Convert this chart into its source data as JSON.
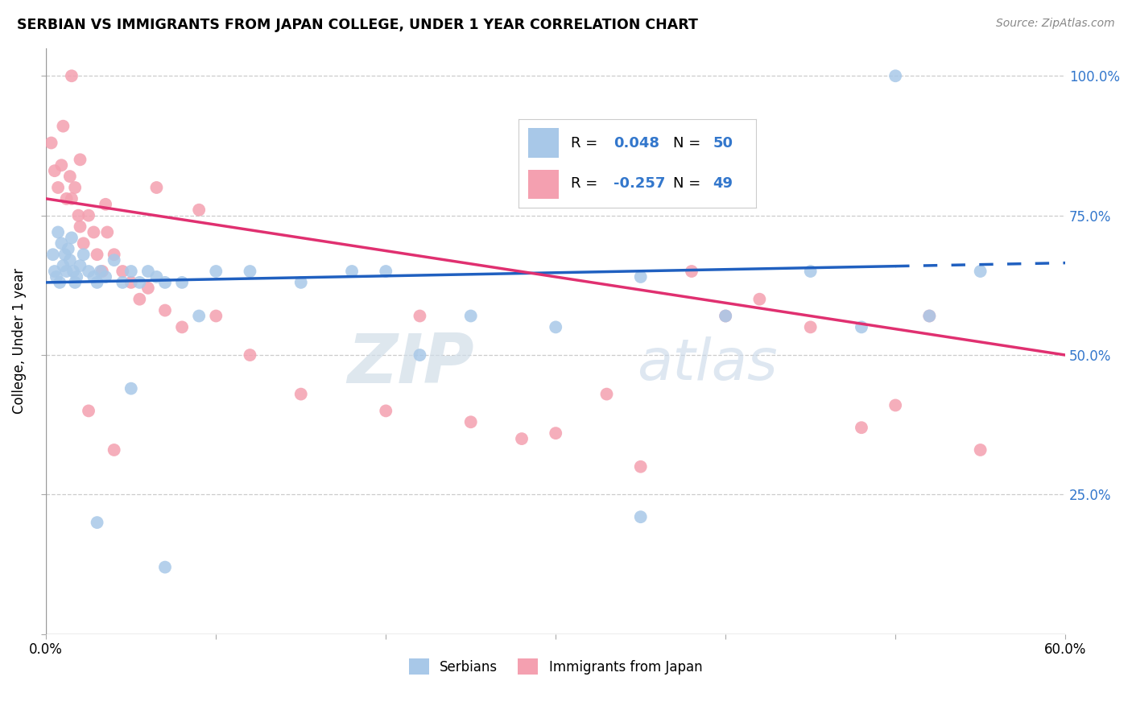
{
  "title": "SERBIAN VS IMMIGRANTS FROM JAPAN COLLEGE, UNDER 1 YEAR CORRELATION CHART",
  "source": "Source: ZipAtlas.com",
  "ylabel": "College, Under 1 year",
  "background_color": "#ffffff",
  "blue_scatter_color": "#a8c8e8",
  "pink_scatter_color": "#f4a0b0",
  "blue_line_color": "#2060c0",
  "pink_line_color": "#e03070",
  "R_blue": 0.048,
  "N_blue": 50,
  "R_pink": -0.257,
  "N_pink": 49,
  "legend_label_blue": "Serbians",
  "legend_label_pink": "Immigrants from Japan",
  "watermark_zip": "ZIP",
  "watermark_atlas": "atlas",
  "blue_line_x0": 0,
  "blue_line_y0": 63.0,
  "blue_line_x1": 60,
  "blue_line_y1": 66.5,
  "blue_solid_end": 50,
  "pink_line_x0": 0,
  "pink_line_y0": 78.0,
  "pink_line_x1": 60,
  "pink_line_y1": 50.0,
  "xlim": [
    0.0,
    60.0
  ],
  "ylim": [
    0.0,
    105.0
  ],
  "blue_x": [
    0.4,
    0.5,
    0.6,
    0.7,
    0.8,
    0.9,
    1.0,
    1.1,
    1.2,
    1.3,
    1.4,
    1.5,
    1.6,
    1.7,
    1.8,
    2.0,
    2.2,
    2.5,
    2.8,
    3.0,
    3.2,
    3.5,
    4.0,
    4.5,
    5.0,
    5.5,
    6.0,
    6.5,
    7.0,
    8.0,
    9.0,
    10.0,
    12.0,
    15.0,
    18.0,
    20.0,
    22.0,
    25.0,
    30.0,
    35.0,
    40.0,
    45.0,
    48.0,
    50.0,
    52.0,
    55.0,
    35.0,
    3.0,
    5.0,
    7.0
  ],
  "blue_y": [
    68.0,
    65.0,
    64.0,
    72.0,
    63.0,
    70.0,
    66.0,
    68.0,
    65.0,
    69.0,
    67.0,
    71.0,
    65.0,
    63.0,
    64.0,
    66.0,
    68.0,
    65.0,
    64.0,
    63.0,
    65.0,
    64.0,
    67.0,
    63.0,
    65.0,
    63.0,
    65.0,
    64.0,
    63.0,
    63.0,
    57.0,
    65.0,
    65.0,
    63.0,
    65.0,
    65.0,
    50.0,
    57.0,
    55.0,
    64.0,
    57.0,
    65.0,
    55.0,
    100.0,
    57.0,
    65.0,
    21.0,
    20.0,
    44.0,
    12.0
  ],
  "pink_x": [
    0.3,
    0.5,
    0.7,
    0.9,
    1.0,
    1.2,
    1.4,
    1.5,
    1.7,
    1.9,
    2.0,
    2.2,
    2.5,
    2.8,
    3.0,
    3.3,
    3.6,
    4.0,
    4.5,
    5.0,
    5.5,
    6.0,
    7.0,
    8.0,
    10.0,
    12.0,
    15.0,
    20.0,
    25.0,
    30.0,
    35.0,
    40.0,
    45.0,
    50.0,
    55.0,
    2.0,
    1.5,
    3.5,
    6.5,
    9.0,
    22.0,
    38.0,
    28.0,
    33.0,
    42.0,
    48.0,
    52.0,
    4.0,
    2.5
  ],
  "pink_y": [
    88.0,
    83.0,
    80.0,
    84.0,
    91.0,
    78.0,
    82.0,
    78.0,
    80.0,
    75.0,
    73.0,
    70.0,
    75.0,
    72.0,
    68.0,
    65.0,
    72.0,
    68.0,
    65.0,
    63.0,
    60.0,
    62.0,
    58.0,
    55.0,
    57.0,
    50.0,
    43.0,
    40.0,
    38.0,
    36.0,
    30.0,
    57.0,
    55.0,
    41.0,
    33.0,
    85.0,
    100.0,
    77.0,
    80.0,
    76.0,
    57.0,
    65.0,
    35.0,
    43.0,
    60.0,
    37.0,
    57.0,
    33.0,
    40.0
  ]
}
